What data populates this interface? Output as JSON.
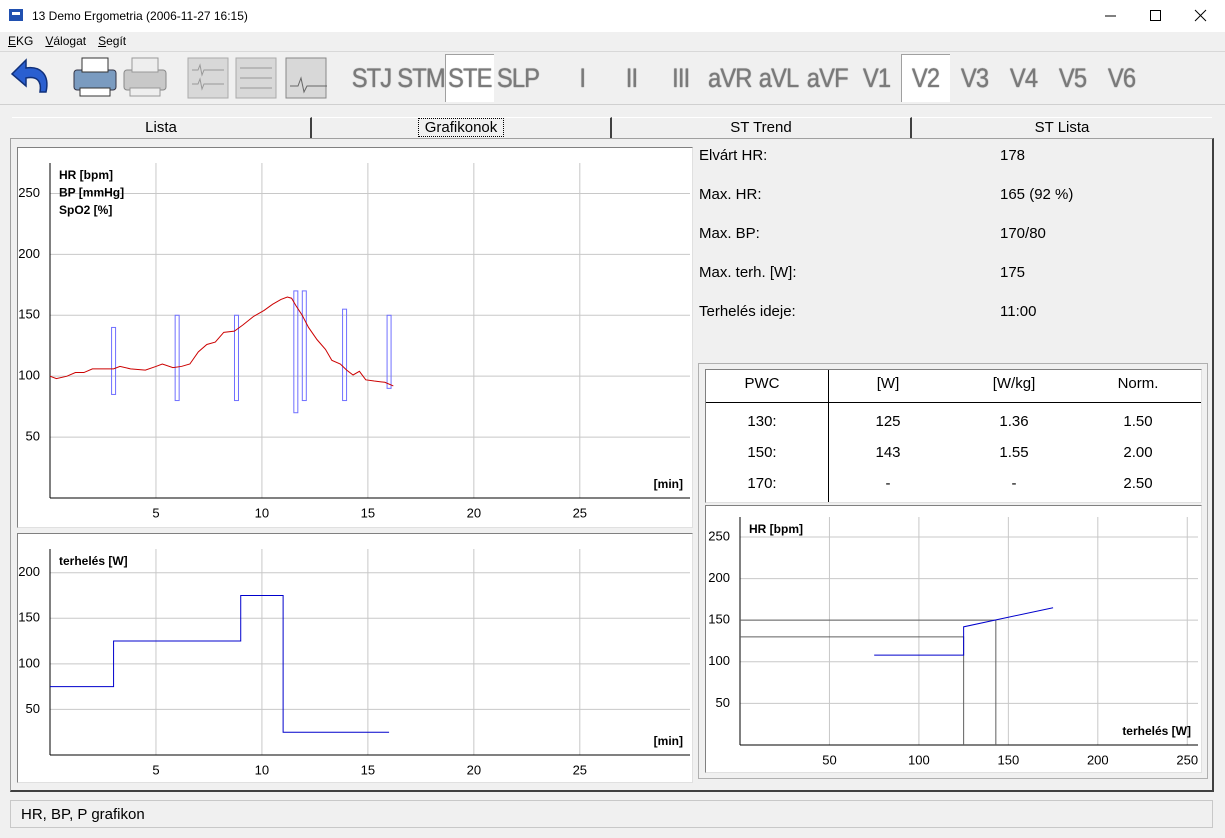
{
  "window": {
    "title": "13 Demo Ergometria (2006-11-27 16:15)"
  },
  "menu": [
    "EKG",
    "Válogat",
    "Segít"
  ],
  "toolbar": {
    "leads": [
      {
        "label": "STJ"
      },
      {
        "label": "STM"
      },
      {
        "label": "STE",
        "pressed": true
      },
      {
        "label": "SLP"
      },
      {
        "label": "I"
      },
      {
        "label": "II"
      },
      {
        "label": "III"
      },
      {
        "label": "aVR"
      },
      {
        "label": "aVL"
      },
      {
        "label": "aVF"
      },
      {
        "label": "V1"
      },
      {
        "label": "V2",
        "pressed": true
      },
      {
        "label": "V3"
      },
      {
        "label": "V4"
      },
      {
        "label": "V5"
      },
      {
        "label": "V6"
      }
    ]
  },
  "tabs": [
    {
      "label": "Lista"
    },
    {
      "label": "Grafikonok",
      "active": true
    },
    {
      "label": "ST Trend"
    },
    {
      "label": "ST Lista"
    }
  ],
  "summary": [
    {
      "label": "Elvárt HR:",
      "value": "178"
    },
    {
      "label": "Max. HR:",
      "value": "165 (92 %)"
    },
    {
      "label": "Max. BP:",
      "value": "170/80"
    },
    {
      "label": "Max. terh. [W]:",
      "value": "175"
    },
    {
      "label": "Terhelés ideje:",
      "value": "11:00"
    }
  ],
  "pwc_table": {
    "header": [
      "PWC",
      "[W]",
      "[W/kg]",
      "Norm."
    ],
    "rows": [
      [
        "130:",
        "125",
        "1.36",
        "1.50"
      ],
      [
        "150:",
        "143",
        "1.55",
        "2.00"
      ],
      [
        "170:",
        "-",
        "-",
        "2.50"
      ]
    ]
  },
  "chart_data": [
    {
      "type": "line",
      "ylabel": [
        "HR [bpm]",
        "BP [mmHg]",
        "SpO2 [%]"
      ],
      "xlabel": "[min]",
      "xlim": [
        0,
        30.2
      ],
      "ylim": [
        0,
        275
      ],
      "xticks": [
        5,
        10,
        15,
        20,
        25
      ],
      "yticks": [
        50,
        100,
        150,
        200,
        250
      ],
      "grid": true,
      "series": [
        {
          "color": "#cc0000",
          "x": [
            0,
            0.3,
            0.8,
            1.2,
            1.6,
            2,
            2.5,
            3,
            3.3,
            3.8,
            4.5,
            5,
            5.3,
            5.8,
            6.2,
            6.6,
            7,
            7.4,
            7.8,
            8.2,
            8.7,
            9.1,
            9.6,
            10.1,
            10.5,
            10.9,
            11.2,
            11.4,
            11.6,
            11.9,
            12.2,
            12.6,
            13,
            13.3,
            13.7,
            14,
            14.3,
            14.6,
            14.9,
            15.3,
            15.8,
            16.2
          ],
          "values": [
            100,
            98,
            100,
            103,
            103,
            106,
            106,
            106,
            108,
            106,
            105,
            108,
            110,
            107,
            108,
            110,
            120,
            126,
            128,
            136,
            137,
            142,
            149,
            154,
            159,
            163,
            165,
            164,
            158,
            150,
            140,
            130,
            122,
            113,
            110,
            105,
            101,
            104,
            97,
            96,
            95,
            92
          ]
        }
      ],
      "ranges": {
        "color": "#7070ff",
        "x": [
          3,
          6,
          8.8,
          11.6,
          12,
          13.9,
          16
        ],
        "high": [
          140,
          150,
          150,
          170,
          170,
          155,
          150
        ],
        "low": [
          85,
          80,
          80,
          70,
          80,
          80,
          90
        ]
      }
    },
    {
      "type": "line",
      "ylabel": [
        "terhelés [W]"
      ],
      "xlabel": "[min]",
      "xlim": [
        0,
        30.2
      ],
      "ylim": [
        0,
        226
      ],
      "xticks": [
        5,
        10,
        15,
        20,
        25
      ],
      "yticks": [
        50,
        100,
        150,
        200
      ],
      "grid": true,
      "series": [
        {
          "color": "#0000cc",
          "x": [
            0,
            3,
            3,
            9,
            9,
            11,
            11,
            16
          ],
          "values": [
            75,
            75,
            125,
            125,
            175,
            175,
            25,
            25
          ]
        }
      ]
    },
    {
      "type": "line",
      "ylabel": [
        "HR [bpm]"
      ],
      "xlabel": "terhelés [W]",
      "xlim": [
        0,
        256
      ],
      "ylim": [
        0,
        274
      ],
      "xticks": [
        50,
        100,
        150,
        200,
        250
      ],
      "yticks": [
        50,
        100,
        150,
        200,
        250
      ],
      "grid": true,
      "series": [
        {
          "color": "#0000cc",
          "x": [
            75,
            125,
            125,
            175
          ],
          "values": [
            108,
            108,
            142,
            165
          ]
        }
      ],
      "guides": {
        "color": "#606060",
        "x": [
          125,
          143
        ],
        "y": [
          130,
          150
        ]
      }
    }
  ],
  "status": "HR, BP, P grafikon"
}
